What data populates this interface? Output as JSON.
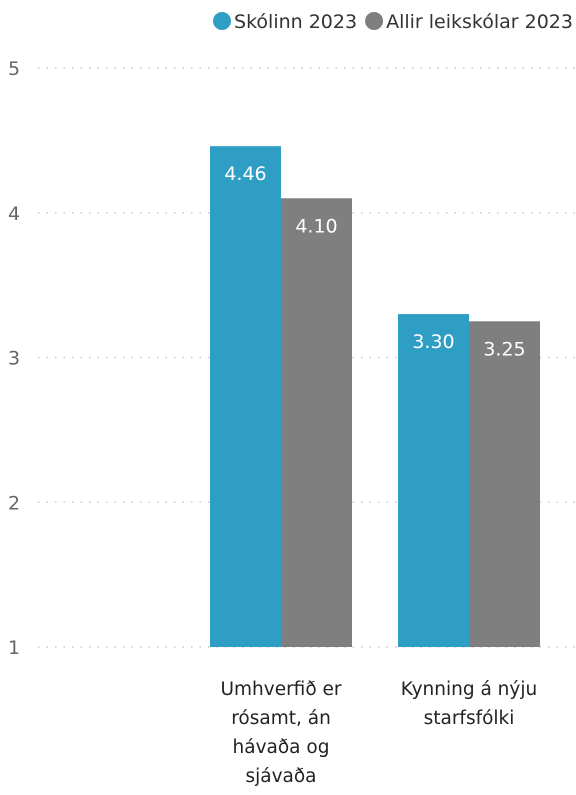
{
  "chart_data": {
    "type": "bar",
    "categories": [
      [
        "Umhverfið er",
        "rósamt, án",
        "hávaða og",
        "sjávaða"
      ],
      [
        "Kynning á nýju",
        "starfsfólki"
      ]
    ],
    "series": [
      {
        "name": "Skólinn 2023",
        "values": [
          4.46,
          3.3
        ],
        "labels": [
          "4.46",
          "3.30"
        ],
        "color": "#2e9ec5"
      },
      {
        "name": "Allir leikskólar 2023",
        "values": [
          4.1,
          3.25
        ],
        "labels": [
          "4.10",
          "3.25"
        ],
        "color": "#7f7f7f"
      }
    ],
    "yticks": [
      "1",
      "2",
      "3",
      "4",
      "5"
    ],
    "ylim": [
      1,
      5
    ],
    "grid": true,
    "legend_position": "top-right"
  }
}
